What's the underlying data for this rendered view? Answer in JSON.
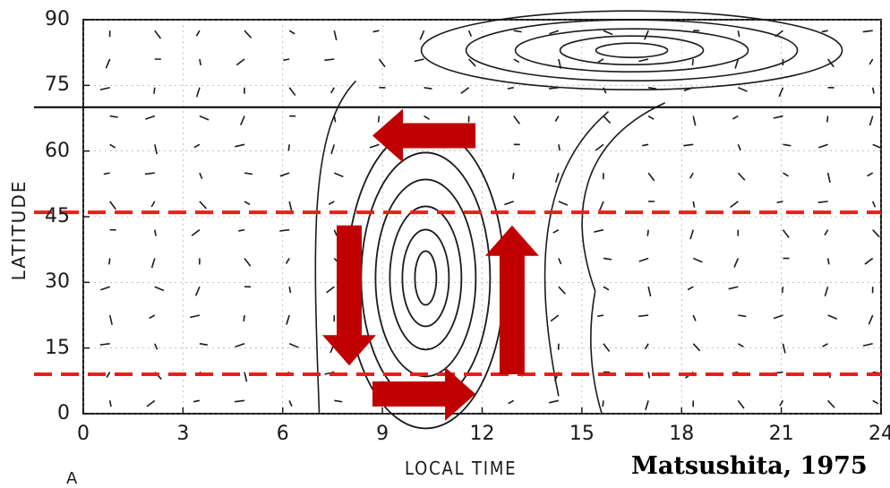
{
  "figure": {
    "xlabel": "LOCAL TIME",
    "ylabel": "LATITUDE",
    "credit": "Matsushita, 1975",
    "panel_mark": "A",
    "x_ticks": [
      "0",
      "3",
      "6",
      "9",
      "12",
      "15",
      "18",
      "21",
      "24"
    ],
    "y_ticks": [
      "90",
      "75",
      "60",
      "45",
      "30",
      "15",
      "0"
    ],
    "x_range": [
      0,
      24
    ],
    "y_range": [
      0,
      90
    ],
    "boundary_latitude": 70,
    "dashed_latitudes": [
      46,
      9
    ],
    "vortex_center": {
      "local_time": 10.3,
      "latitude": 31
    },
    "arrows": [
      {
        "direction": "left",
        "from": {
          "local_time": 11.8,
          "latitude": 63.5
        },
        "to": {
          "local_time": 8.7,
          "latitude": 63.5
        }
      },
      {
        "direction": "down",
        "from": {
          "local_time": 8.0,
          "latitude": 43
        },
        "to": {
          "local_time": 8.0,
          "latitude": 11
        }
      },
      {
        "direction": "right",
        "from": {
          "local_time": 8.7,
          "latitude": 4.5
        },
        "to": {
          "local_time": 11.8,
          "latitude": 4.5
        }
      },
      {
        "direction": "up",
        "from": {
          "local_time": 12.9,
          "latitude": 9
        },
        "to": {
          "local_time": 12.9,
          "latitude": 43
        }
      }
    ],
    "colors": {
      "arrow": "#c00000",
      "dashed_line": "#e8201a",
      "ink": "#1a1a1a",
      "grid": "#9a9a9a"
    }
  }
}
